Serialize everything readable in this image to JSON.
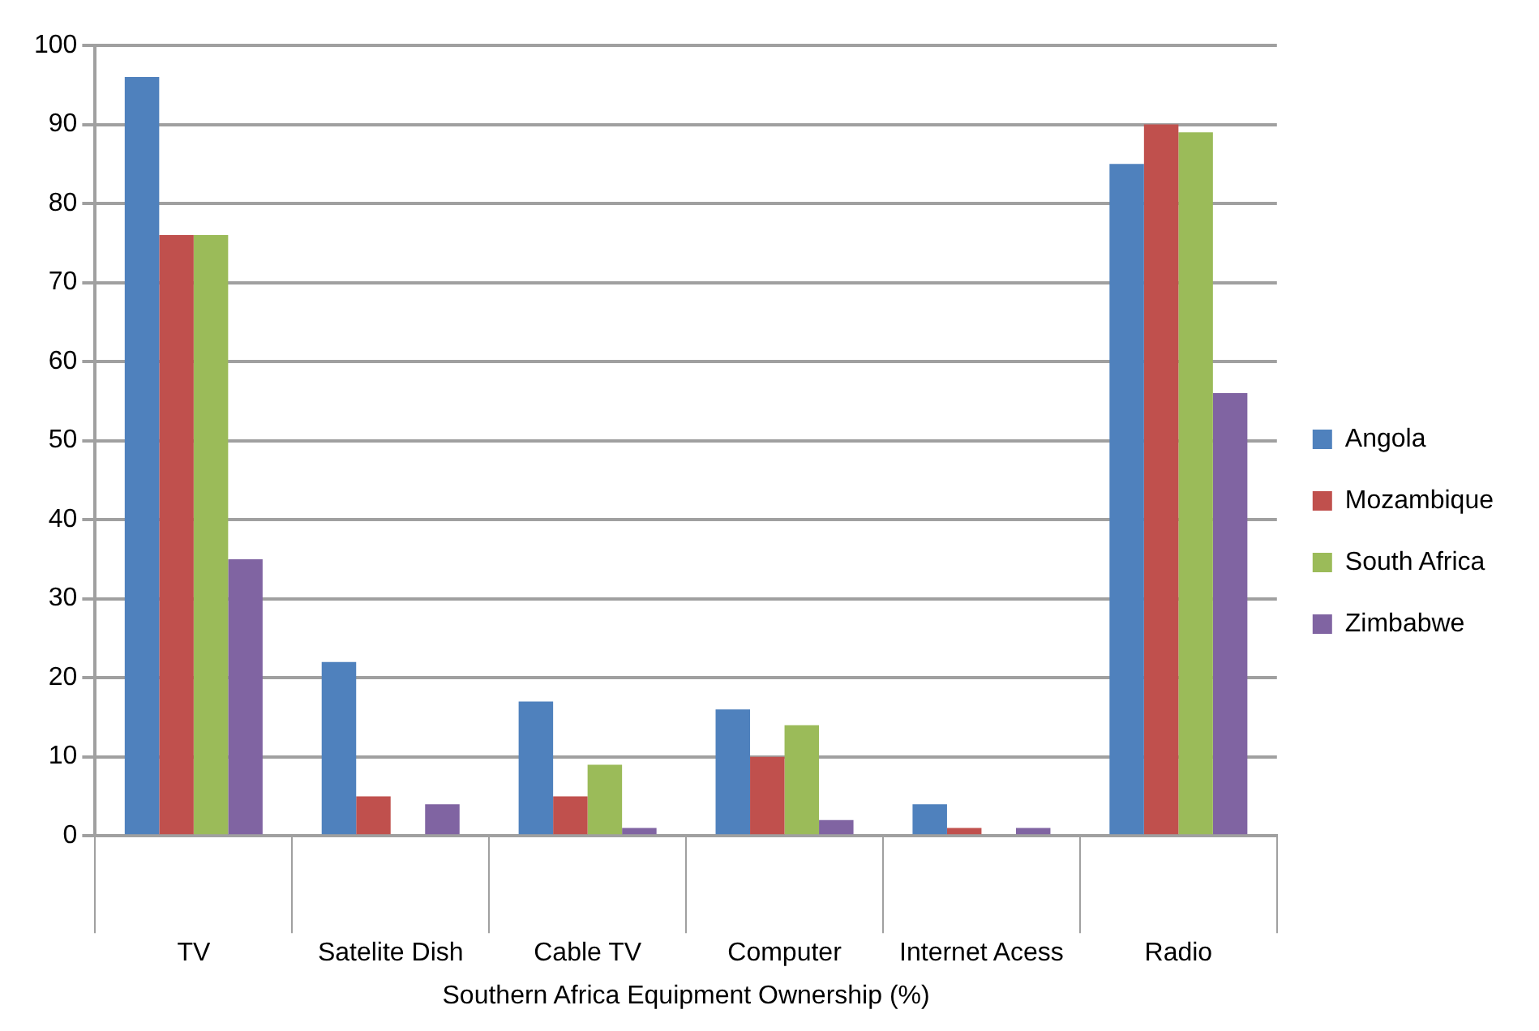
{
  "chart_data": {
    "type": "bar",
    "xlabel": "Southern Africa Equipment Ownership (%)",
    "categories": [
      "TV",
      "Satelite Dish",
      "Cable TV",
      "Computer",
      "Internet Acess",
      "Radio"
    ],
    "series": [
      {
        "name": "Angola",
        "color": "#4f81bd",
        "values": [
          96,
          22,
          17,
          16,
          4,
          85
        ]
      },
      {
        "name": "Mozambique",
        "color": "#c0504d",
        "values": [
          76,
          5,
          5,
          10,
          1,
          90
        ]
      },
      {
        "name": "South Africa",
        "color": "#9bbb59",
        "values": [
          76,
          0,
          9,
          14,
          0,
          89
        ]
      },
      {
        "name": "Zimbabwe",
        "color": "#8064a2",
        "values": [
          35,
          4,
          1,
          2,
          1,
          56
        ]
      }
    ],
    "ylim": [
      0,
      100
    ],
    "yticks": [
      0,
      10,
      20,
      30,
      40,
      50,
      60,
      70,
      80,
      90,
      100
    ],
    "grid": "y",
    "legend": "right"
  }
}
